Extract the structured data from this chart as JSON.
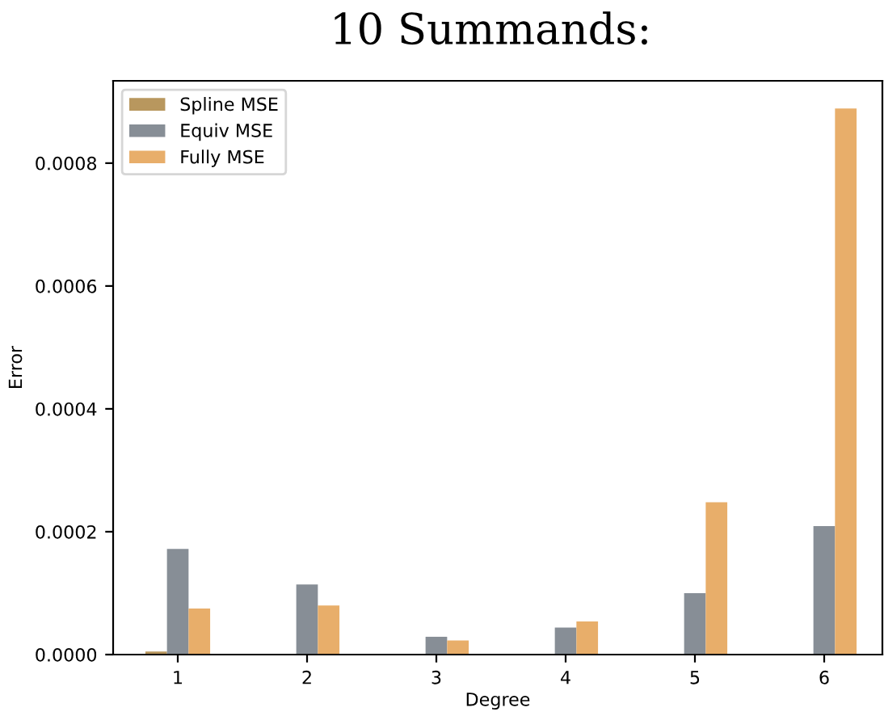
{
  "chart_data": {
    "type": "bar",
    "title": "10 Summands:",
    "xlabel": "Degree",
    "ylabel": "Error",
    "categories": [
      "1",
      "2",
      "3",
      "4",
      "5",
      "6"
    ],
    "series": [
      {
        "name": "Spline MSE",
        "color": "#b8975e",
        "values": [
          5e-06,
          0,
          0,
          0,
          0,
          0
        ]
      },
      {
        "name": "Equiv MSE",
        "color": "#878e96",
        "values": [
          0.000172,
          0.000114,
          2.9e-05,
          4.4e-05,
          0.0001,
          0.000209
        ]
      },
      {
        "name": "Fully MSE",
        "color": "#e8ae6a",
        "values": [
          7.5e-05,
          8e-05,
          2.3e-05,
          5.4e-05,
          0.000248,
          0.000889
        ]
      }
    ],
    "ylim": [
      0,
      0.000934
    ],
    "yticks": [
      {
        "value": 0,
        "label": "0.0000"
      },
      {
        "value": 0.0002,
        "label": "0.0002"
      },
      {
        "value": 0.0004,
        "label": "0.0004"
      },
      {
        "value": 0.0006,
        "label": "0.0006"
      },
      {
        "value": 0.0008,
        "label": "0.0008"
      }
    ],
    "grid": false,
    "legend": "top left"
  }
}
